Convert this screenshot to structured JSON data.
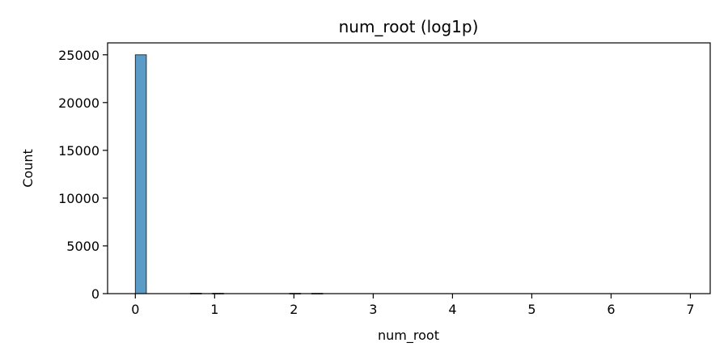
{
  "chart_data": {
    "type": "bar",
    "title": "num_root (log1p)",
    "xlabel": "num_root",
    "ylabel": "Count",
    "xlim": [
      -0.35,
      7.25
    ],
    "ylim": [
      0,
      26250
    ],
    "x_ticks": [
      0,
      1,
      2,
      3,
      4,
      5,
      6,
      7
    ],
    "y_ticks": [
      0,
      5000,
      10000,
      15000,
      20000,
      25000
    ],
    "grid": false,
    "bar_color": "#5B9BC8",
    "bins": [
      {
        "x0": 0.0,
        "x1": 0.139,
        "count": 25000
      },
      {
        "x0": 0.695,
        "x1": 0.834,
        "count": 40
      },
      {
        "x0": 0.973,
        "x1": 1.112,
        "count": 35
      },
      {
        "x0": 1.946,
        "x1": 2.085,
        "count": 30
      },
      {
        "x0": 2.224,
        "x1": 2.363,
        "count": 30
      }
    ]
  }
}
